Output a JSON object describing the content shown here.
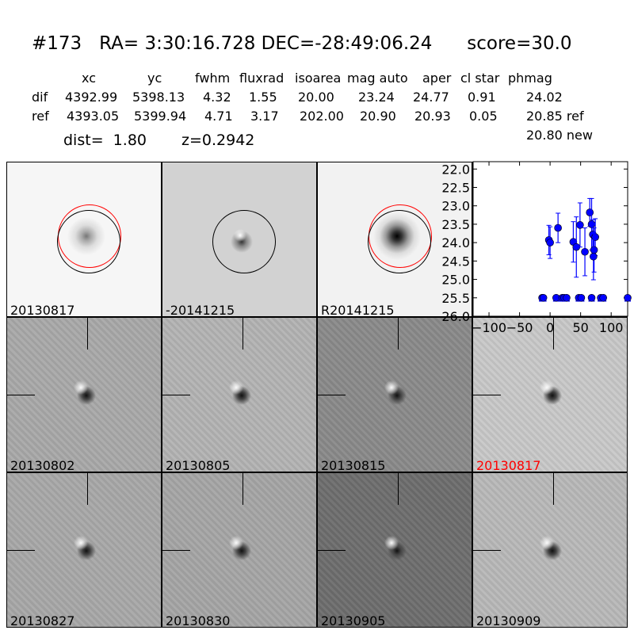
{
  "header": {
    "title": "#173   RA= 3:30:16.728 DEC=-28:49:06.24      score=30.0"
  },
  "table": {
    "columns": [
      "xc",
      "yc",
      "fwhm",
      "fluxrad",
      "isoarea",
      "mag auto",
      "aper",
      "cl star",
      "phmag"
    ],
    "rows": [
      {
        "label": "dif",
        "values": [
          "4392.99",
          "5398.13",
          "4.32",
          "1.55",
          "20.00",
          "23.24",
          "24.77",
          "0.91",
          "24.02"
        ]
      },
      {
        "label": "ref",
        "values": [
          "4393.05",
          "5399.94",
          "4.71",
          "3.17",
          "202.00",
          "20.90",
          "20.93",
          "0.05",
          "20.85 ref"
        ]
      }
    ],
    "extra": "20.80 new",
    "dist": "dist=  1.80",
    "z": "z=0.2942"
  },
  "panels": [
    {
      "label": "20130817",
      "bg": "#f6f6f6",
      "color": "#000"
    },
    {
      "label": "-20141215",
      "bg": "#d2d2d2",
      "color": "#000"
    },
    {
      "label": "R20141215",
      "bg": "#f2f2f2",
      "color": "#000"
    },
    {
      "label": "",
      "bg": "#fff",
      "color": "#000"
    },
    {
      "label": "20130802",
      "bg": "#a9a9a9",
      "color": "#000"
    },
    {
      "label": "20130805",
      "bg": "#b3b3b3",
      "color": "#000"
    },
    {
      "label": "20130815",
      "bg": "#8a8a8a",
      "color": "#000"
    },
    {
      "label": "20130817",
      "bg": "#c8c8c8",
      "color": "#ff0000"
    },
    {
      "label": "20130827",
      "bg": "#a8a8a8",
      "color": "#000"
    },
    {
      "label": "20130830",
      "bg": "#a5a5a5",
      "color": "#000"
    },
    {
      "label": "20130905",
      "bg": "#6e6e6e",
      "color": "#000"
    },
    {
      "label": "20130909",
      "bg": "#b8b8b8",
      "color": "#000"
    }
  ],
  "chart_data": {
    "type": "scatter",
    "xlim": [
      -126,
      127
    ],
    "ylim": [
      26.0,
      21.8
    ],
    "y_inverted": true,
    "xticks": [
      "−100",
      "−50",
      "0",
      "50",
      "100"
    ],
    "xtick_values": [
      -100,
      -50,
      0,
      50,
      100
    ],
    "yticks": [
      "22.0",
      "22.5",
      "23.0",
      "23.5",
      "24.0",
      "24.5",
      "25.0",
      "25.5",
      "26.0"
    ],
    "ytick_values": [
      22.0,
      22.5,
      23.0,
      23.5,
      24.0,
      24.5,
      25.0,
      25.5,
      26.0
    ],
    "color": "#0000ff",
    "points": [
      {
        "x": -2,
        "y": 23.93,
        "err": 0.4
      },
      {
        "x": 0,
        "y": 24.0,
        "err": 0.43
      },
      {
        "x": 13,
        "y": 23.6,
        "err": 0.4
      },
      {
        "x": 38,
        "y": 23.98,
        "err": 0.55
      },
      {
        "x": 43,
        "y": 24.12,
        "err": 0.82
      },
      {
        "x": 49,
        "y": 23.52,
        "err": 0.6
      },
      {
        "x": 57,
        "y": 24.25,
        "err": 0.65
      },
      {
        "x": 65,
        "y": 23.18,
        "err": 0.38
      },
      {
        "x": 68,
        "y": 23.5,
        "err": 0.7
      },
      {
        "x": 70,
        "y": 23.78,
        "err": 0.4
      },
      {
        "x": 74,
        "y": 23.85,
        "err": 0.5
      },
      {
        "x": 72,
        "y": 24.2,
        "err": 0.6
      },
      {
        "x": 71,
        "y": 24.38,
        "err": 0.63
      }
    ],
    "limits": {
      "y": 25.5,
      "x": [
        -13,
        -11,
        10,
        20,
        23,
        27,
        47,
        51,
        68,
        83,
        87,
        127
      ]
    }
  }
}
